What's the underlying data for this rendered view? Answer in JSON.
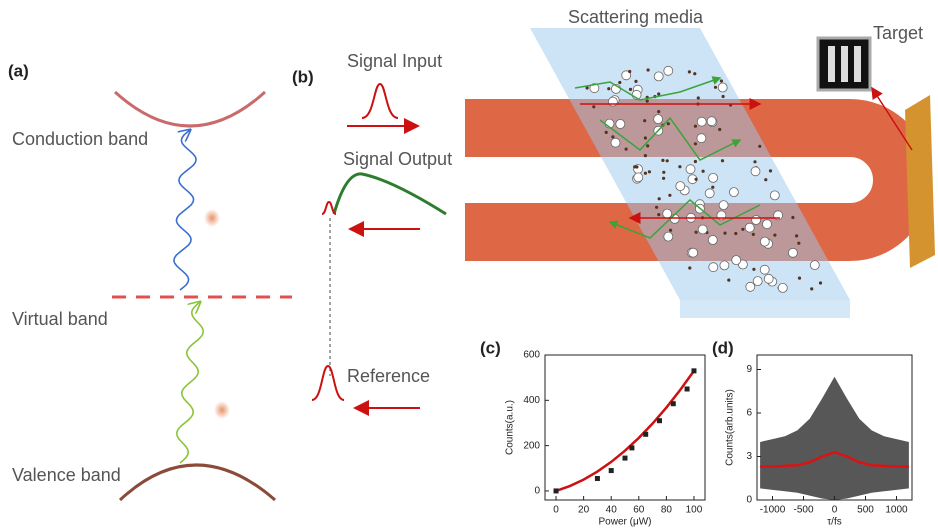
{
  "diagram": {
    "panel_a": "(a)",
    "conduction_band": "Conduction band",
    "virtual_band": "Virtual band",
    "valence_band": "Valence band",
    "panel_b": "(b)",
    "signal_input": "Signal Input",
    "signal_output": "Signal Output",
    "reference": "Reference",
    "scattering_media": "Scattering media",
    "target": "Target"
  },
  "chart_data": [
    {
      "type": "scatter",
      "label": "(c)",
      "x_label": "Power (μW)",
      "y_label": "Counts(a.u.)",
      "xlim": [
        -8,
        108
      ],
      "ylim": [
        -40,
        600
      ],
      "xticks": [
        0,
        20,
        40,
        60,
        80,
        100
      ],
      "yticks": [
        0,
        200,
        400,
        600
      ],
      "series": [
        {
          "style": "line",
          "color": "#cc1111",
          "x": [
            0,
            10,
            20,
            30,
            40,
            50,
            60,
            70,
            80,
            90,
            100
          ],
          "values": [
            0,
            21.5,
            50,
            85.5,
            128,
            177.5,
            234,
            297.5,
            368,
            445.5,
            530
          ]
        },
        {
          "style": "marker",
          "color": "#222222",
          "x": [
            0,
            30,
            40,
            50,
            55,
            65,
            75,
            85,
            95,
            100
          ],
          "values": [
            0,
            55,
            90,
            145,
            190,
            250,
            310,
            385,
            450,
            530
          ]
        }
      ]
    },
    {
      "type": "line",
      "label": "(d)",
      "x_label": "τ/fs",
      "y_label": "Counts(arb.units)",
      "xlim": [
        -1250,
        1250
      ],
      "ylim": [
        0,
        10
      ],
      "xticks": [
        -1000,
        -500,
        0,
        500,
        1000
      ],
      "yticks": [
        0,
        3,
        6,
        9
      ],
      "series": [
        {
          "style": "band",
          "color": "#3a3a3a",
          "x": [
            -1200,
            -1000,
            -800,
            -600,
            -400,
            -200,
            0,
            200,
            400,
            600,
            800,
            1000,
            1200
          ],
          "values": [
            4.0,
            4.2,
            4.4,
            4.8,
            5.6,
            7.0,
            8.5,
            7.0,
            5.6,
            4.8,
            4.4,
            4.2,
            4.0
          ],
          "low": [
            0.8,
            0.7,
            0.6,
            0.5,
            0.3,
            0.1,
            0.0,
            0.1,
            0.3,
            0.5,
            0.6,
            0.7,
            0.8
          ]
        },
        {
          "style": "line",
          "color": "#dd1111",
          "x": [
            -1200,
            -1000,
            -800,
            -600,
            -400,
            -200,
            0,
            200,
            400,
            600,
            800,
            1000,
            1200
          ],
          "values": [
            2.3,
            2.3,
            2.35,
            2.4,
            2.6,
            3.0,
            3.3,
            3.0,
            2.6,
            2.4,
            2.35,
            2.3,
            2.3
          ]
        }
      ]
    }
  ]
}
